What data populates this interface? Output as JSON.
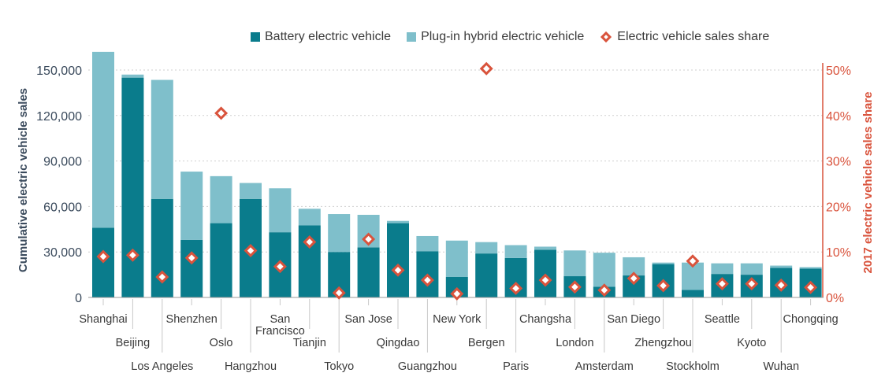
{
  "legend": {
    "bev": "Battery electric vehicle",
    "phev": "Plug-in hybrid electric vehicle",
    "share": "Electric vehicle sales share"
  },
  "colors": {
    "bev": "#0a7c8c",
    "phev": "#7fbfcb",
    "share": "#d9533c",
    "axis_left": "#3a4a5c",
    "axis_right": "#d9533c",
    "grid": "#cfcfcf"
  },
  "chart_data": {
    "type": "bar",
    "stacked": true,
    "ylabel": "Cumulative electric vehicle sales",
    "y2label": "2017 electric vehicle sales share",
    "ylim": [
      0,
      160000
    ],
    "y2lim": [
      0,
      55
    ],
    "yticks": [
      0,
      30000,
      60000,
      90000,
      120000,
      150000
    ],
    "ytick_labels": [
      "0",
      "30,000",
      "60,000",
      "90,000",
      "120,000",
      "150,000"
    ],
    "y2ticks": [
      0,
      10,
      20,
      30,
      40,
      50
    ],
    "y2tick_labels": [
      "0%",
      "10%",
      "20%",
      "30%",
      "40%",
      "50%"
    ],
    "grid": true,
    "legend_position": "top",
    "categories": [
      "Shanghai",
      "Beijing",
      "Los Angeles",
      "Shenzhen",
      "Oslo",
      "Hangzhou",
      "San Francisco",
      "Tianjin",
      "Tokyo",
      "San Jose",
      "Qingdao",
      "Guangzhou",
      "New York",
      "Bergen",
      "Paris",
      "Changsha",
      "London",
      "Amsterdam",
      "San Diego",
      "Zhengzhou",
      "Stockholm",
      "Seattle",
      "Kyoto",
      "Wuhan",
      "Chongqing"
    ],
    "category_labels": [
      "Shanghai",
      "Beijing",
      "Los Angeles",
      "Shenzhen",
      "Oslo",
      "Hangzhou",
      "San\nFrancisco",
      "Tianjin",
      "Tokyo",
      "San Jose",
      "Qingdao",
      "Guangzhou",
      "New York",
      "Bergen",
      "Paris",
      "Changsha",
      "London",
      "Amsterdam",
      "San Diego",
      "Zhengzhou",
      "Stockholm",
      "Seattle",
      "Kyoto",
      "Wuhan",
      "Chongqing"
    ],
    "series": [
      {
        "name": "Battery electric vehicle",
        "axis": "left",
        "values": [
          46000,
          145000,
          65000,
          38000,
          49000,
          65000,
          43000,
          47500,
          30000,
          33000,
          49000,
          30500,
          13500,
          29000,
          26000,
          31500,
          14000,
          7000,
          14500,
          22000,
          5000,
          15500,
          15000,
          19500,
          19000
        ]
      },
      {
        "name": "Plug-in hybrid electric vehicle",
        "axis": "left",
        "values": [
          116000,
          2000,
          78500,
          45000,
          31000,
          10500,
          29000,
          11000,
          25000,
          21500,
          1500,
          10000,
          24000,
          7500,
          8500,
          2000,
          17000,
          22500,
          12000,
          1000,
          18000,
          7000,
          7500,
          1500,
          1000
        ]
      },
      {
        "name": "Electric vehicle sales share",
        "axis": "right",
        "type": "scatter",
        "values": [
          9,
          9.3,
          4.5,
          8.7,
          40.5,
          10.3,
          6.8,
          12.2,
          1,
          12.8,
          6,
          3.8,
          0.8,
          50.3,
          2,
          3.8,
          2.3,
          1.6,
          4.2,
          2.6,
          8,
          3,
          3,
          2.7,
          2.2
        ]
      }
    ]
  }
}
